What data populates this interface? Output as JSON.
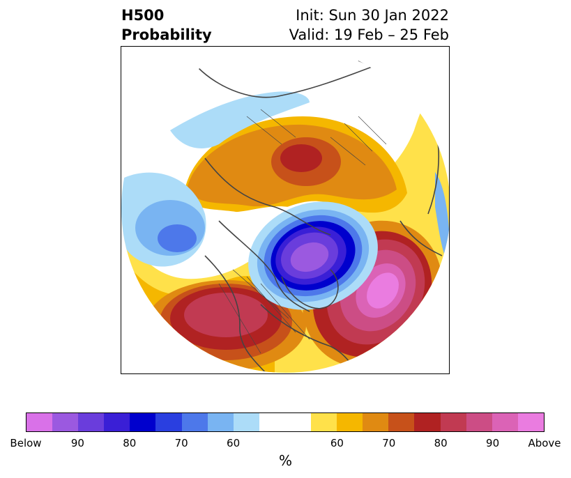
{
  "title": {
    "left_line1": "H500",
    "left_line2": "Probability",
    "right_line1": "Init: Sun 30 Jan 2022",
    "right_line2": "Valid: 19 Feb – 25 Feb"
  },
  "colorbar": {
    "colors": [
      "#d971e8",
      "#9b59e0",
      "#6a3ddc",
      "#3a1fd6",
      "#0000cd",
      "#2a3fe0",
      "#4d78ea",
      "#79b4f2",
      "#acdcf8",
      "#ffffff",
      "#ffffff",
      "#ffe14a",
      "#f5b700",
      "#e08a12",
      "#c7511a",
      "#b02222",
      "#c13a52",
      "#cc4d85",
      "#db63b6",
      "#ea7ce0"
    ],
    "tick_labels": [
      "Below",
      "90",
      "80",
      "70",
      "60",
      "",
      "60",
      "70",
      "80",
      "90",
      "Above"
    ],
    "label": "%"
  },
  "map": {
    "projection": "north-polar stereographic",
    "below_color": "#6a3ddc",
    "above_color": "#db63b6"
  }
}
